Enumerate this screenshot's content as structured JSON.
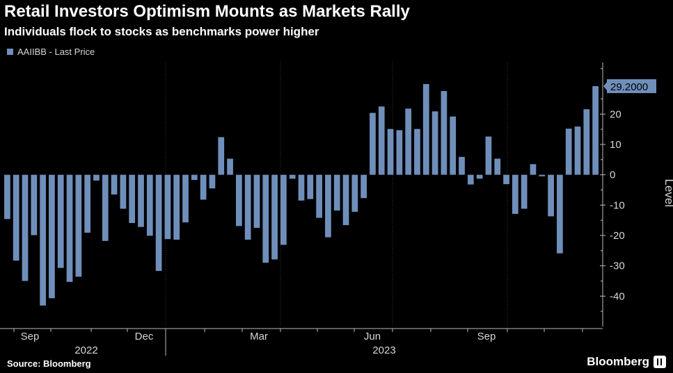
{
  "header": {
    "title": "Retail Investors Optimism Mounts as Markets Rally",
    "subtitle": "Individuals flock to stocks as benchmarks power higher"
  },
  "legend": {
    "label": "AAIIBB - Last Price"
  },
  "footer": {
    "source": "Source: Bloomberg",
    "brand": "Bloomberg"
  },
  "colors": {
    "background": "#000000",
    "bar": "#6f8fbb",
    "grid": "#3a3a3a",
    "axis_text": "#d7d7d7"
  },
  "icons": {
    "brand": "bloomberg-logo-icon"
  },
  "chart_data": {
    "type": "bar",
    "legend_placement": "top-left",
    "grid": "vertical",
    "ylabel": "Level",
    "ylim": [
      -50,
      37
    ],
    "yticks": [
      -40,
      -30,
      -20,
      -10,
      0,
      10,
      20
    ],
    "last_value_label": "29.2000",
    "x_month_labels": [
      "Sep",
      "Dec",
      "Mar",
      "Jun",
      "Sep"
    ],
    "x_year_labels": [
      "2022",
      "2023"
    ],
    "series": [
      {
        "name": "AAIIBB - Last Price",
        "values": [
          -14.6,
          -28.3,
          -35.0,
          -19.9,
          -43.1,
          -40.7,
          -30.7,
          -35.3,
          -33.6,
          -19.1,
          -1.9,
          -21.8,
          -6.5,
          -11.2,
          -15.9,
          -17.2,
          -20.1,
          -31.7,
          -21.2,
          -21.4,
          -15.7,
          -1.7,
          -8.2,
          -4.5,
          12.4,
          5.3,
          -16.9,
          -21.4,
          -17.5,
          -29.0,
          -27.9,
          -23.1,
          -1.3,
          -8.5,
          -8.0,
          -14.2,
          -20.6,
          -11.8,
          -16.6,
          -12.2,
          -7.7,
          20.4,
          22.5,
          15.1,
          14.7,
          21.8,
          15.1,
          29.9,
          20.9,
          27.6,
          19.2,
          5.9,
          -3.2,
          -1.3,
          12.6,
          5.3,
          -3.1,
          -12.9,
          -11.2,
          3.5,
          -0.5,
          -13.7,
          -25.9,
          15.2,
          15.9,
          21.6,
          29.2
        ]
      }
    ]
  }
}
